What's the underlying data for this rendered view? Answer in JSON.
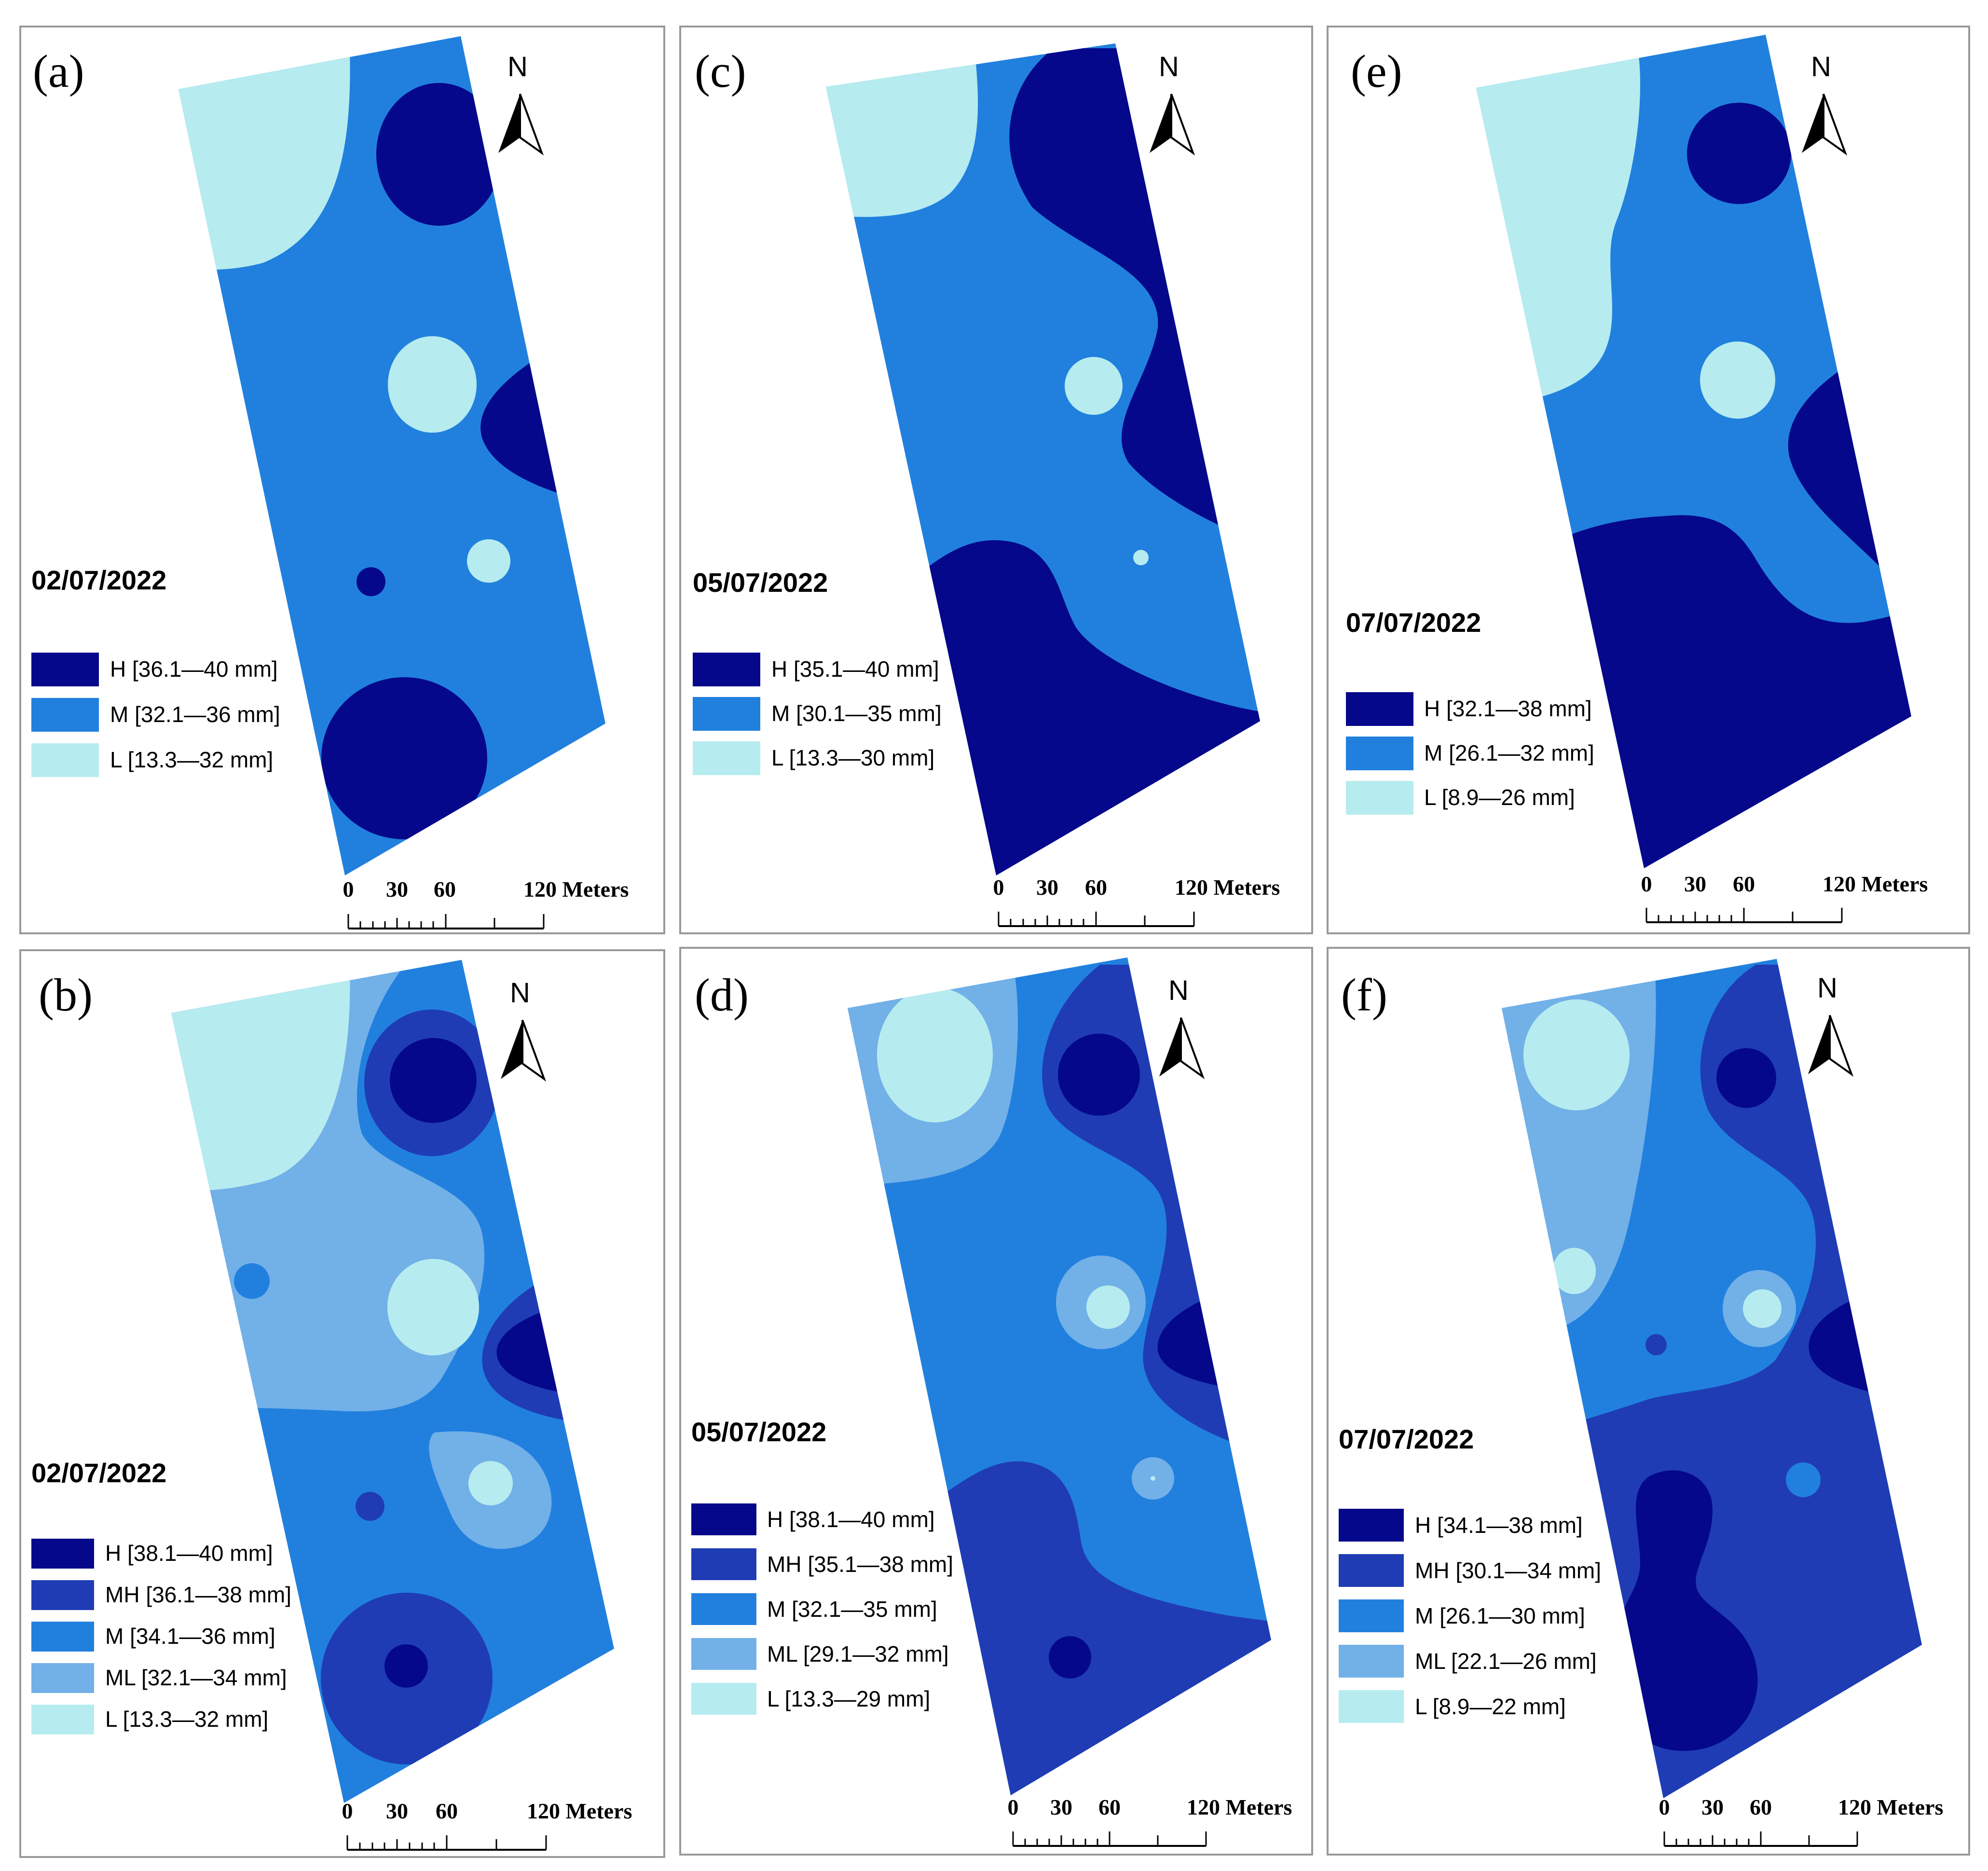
{
  "colors": {
    "H": "#05088a",
    "MH": "#1f3cb4",
    "M": "#2180de",
    "ML": "#72b0e8",
    "L": "#b6ecef",
    "frame": "#999999",
    "text": "#000000"
  },
  "north_label": "N",
  "scale_bar": {
    "ticks": [
      "0",
      "30",
      "60",
      "120 Meters"
    ]
  },
  "panels": [
    {
      "id": "a",
      "label": "(a)",
      "date": "02/07/2022",
      "legend": [
        {
          "cls": "H",
          "text": "H [36.1—40 mm]"
        },
        {
          "cls": "M",
          "text": "M [32.1—36 mm]"
        },
        {
          "cls": "L",
          "text": "L [13.3—32 mm]"
        }
      ]
    },
    {
      "id": "c",
      "label": "(c)",
      "date": "05/07/2022",
      "legend": [
        {
          "cls": "H",
          "text": "H [35.1—40 mm]"
        },
        {
          "cls": "M",
          "text": "M [30.1—35 mm]"
        },
        {
          "cls": "L",
          "text": "L [13.3—30 mm]"
        }
      ]
    },
    {
      "id": "e",
      "label": "(e)",
      "date": "07/07/2022",
      "legend": [
        {
          "cls": "H",
          "text": "H [32.1—38 mm]"
        },
        {
          "cls": "M",
          "text": "M [26.1—32 mm]"
        },
        {
          "cls": "L",
          "text": "L [8.9—26 mm]"
        }
      ]
    },
    {
      "id": "b",
      "label": "(b)",
      "date": "02/07/2022",
      "legend": [
        {
          "cls": "H",
          "text": "H [38.1—40 mm]"
        },
        {
          "cls": "MH",
          "text": "MH [36.1—38 mm]"
        },
        {
          "cls": "M",
          "text": "M [34.1—36 mm]"
        },
        {
          "cls": "ML",
          "text": "ML [32.1—34 mm]"
        },
        {
          "cls": "L",
          "text": "L [13.3—32 mm]"
        }
      ]
    },
    {
      "id": "d",
      "label": "(d)",
      "date": "05/07/2022",
      "legend": [
        {
          "cls": "H",
          "text": "H [38.1—40 mm]"
        },
        {
          "cls": "MH",
          "text": "MH [35.1—38 mm]"
        },
        {
          "cls": "M",
          "text": "M [32.1—35 mm]"
        },
        {
          "cls": "ML",
          "text": "ML [29.1—32 mm]"
        },
        {
          "cls": "L",
          "text": "L [13.3—29 mm]"
        }
      ]
    },
    {
      "id": "f",
      "label": "(f)",
      "date": "07/07/2022",
      "legend": [
        {
          "cls": "H",
          "text": "H [34.1—38 mm]"
        },
        {
          "cls": "MH",
          "text": "MH [30.1—34 mm]"
        },
        {
          "cls": "M",
          "text": "M [26.1—30 mm]"
        },
        {
          "cls": "ML",
          "text": "ML [22.1—26 mm]"
        },
        {
          "cls": "L",
          "text": "L [8.9—22 mm]"
        }
      ]
    }
  ]
}
